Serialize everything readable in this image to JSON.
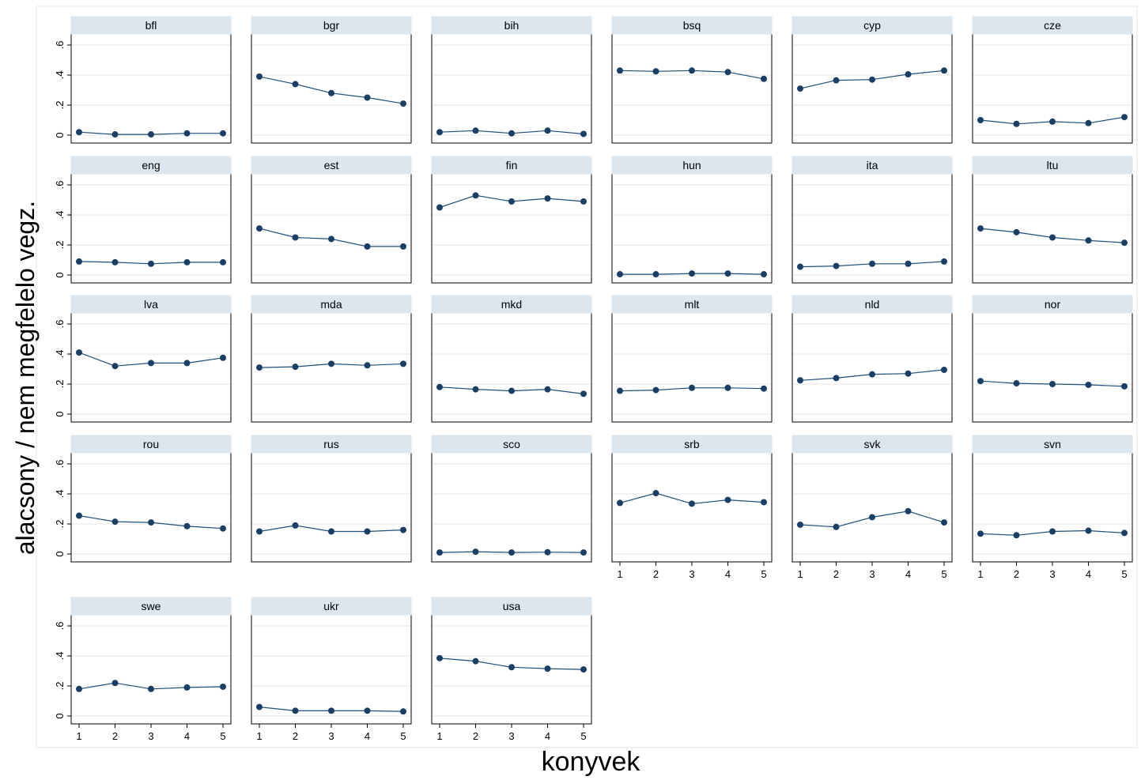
{
  "chart_data": {
    "type": "line",
    "xlabel": "konyvek",
    "ylabel": "alacsony / nem megfelelo vegz.",
    "x": [
      1,
      2,
      3,
      4,
      5
    ],
    "ylim": [
      0,
      0.6
    ],
    "yticks": [
      0,
      0.2,
      0.4,
      0.6
    ],
    "ytick_labels": [
      "0",
      ".2",
      ".4",
      ".6"
    ],
    "grid": true,
    "colors": {
      "line": "#1f4e79",
      "marker": "#1a3f66",
      "strip": "#dce6ee",
      "grid": "#e6e6e6",
      "frame": "#000000"
    },
    "panels": [
      {
        "name": "bfl",
        "values": [
          0.02,
          0.005,
          0.005,
          0.012,
          0.012
        ]
      },
      {
        "name": "bgr",
        "values": [
          0.39,
          0.34,
          0.28,
          0.25,
          0.21
        ]
      },
      {
        "name": "bih",
        "values": [
          0.02,
          0.03,
          0.012,
          0.03,
          0.008
        ]
      },
      {
        "name": "bsq",
        "values": [
          0.43,
          0.425,
          0.43,
          0.42,
          0.375
        ]
      },
      {
        "name": "cyp",
        "values": [
          0.31,
          0.365,
          0.37,
          0.405,
          0.43
        ]
      },
      {
        "name": "cze",
        "values": [
          0.1,
          0.075,
          0.09,
          0.08,
          0.12
        ]
      },
      {
        "name": "eng",
        "values": [
          0.09,
          0.085,
          0.075,
          0.085,
          0.085
        ]
      },
      {
        "name": "est",
        "values": [
          0.31,
          0.25,
          0.24,
          0.19,
          0.19
        ]
      },
      {
        "name": "fin",
        "values": [
          0.45,
          0.53,
          0.49,
          0.51,
          0.49
        ]
      },
      {
        "name": "hun",
        "values": [
          0.005,
          0.005,
          0.01,
          0.01,
          0.005
        ]
      },
      {
        "name": "ita",
        "values": [
          0.055,
          0.06,
          0.075,
          0.075,
          0.09
        ]
      },
      {
        "name": "ltu",
        "values": [
          0.31,
          0.285,
          0.25,
          0.23,
          0.215
        ]
      },
      {
        "name": "lva",
        "values": [
          0.41,
          0.32,
          0.34,
          0.34,
          0.375
        ]
      },
      {
        "name": "mda",
        "values": [
          0.31,
          0.315,
          0.335,
          0.325,
          0.335
        ]
      },
      {
        "name": "mkd",
        "values": [
          0.18,
          0.165,
          0.155,
          0.165,
          0.135
        ]
      },
      {
        "name": "mlt",
        "values": [
          0.155,
          0.16,
          0.175,
          0.175,
          0.17
        ]
      },
      {
        "name": "nld",
        "values": [
          0.225,
          0.24,
          0.265,
          0.27,
          0.295
        ]
      },
      {
        "name": "nor",
        "values": [
          0.22,
          0.205,
          0.2,
          0.195,
          0.185
        ]
      },
      {
        "name": "rou",
        "values": [
          0.255,
          0.215,
          0.21,
          0.185,
          0.17
        ]
      },
      {
        "name": "rus",
        "values": [
          0.15,
          0.19,
          0.15,
          0.15,
          0.16
        ]
      },
      {
        "name": "sco",
        "values": [
          0.01,
          0.015,
          0.01,
          0.012,
          0.01
        ]
      },
      {
        "name": "srb",
        "values": [
          0.34,
          0.405,
          0.335,
          0.36,
          0.345
        ]
      },
      {
        "name": "svk",
        "values": [
          0.195,
          0.18,
          0.245,
          0.285,
          0.21
        ]
      },
      {
        "name": "svn",
        "values": [
          0.135,
          0.125,
          0.15,
          0.155,
          0.14
        ]
      },
      {
        "name": "swe",
        "values": [
          0.18,
          0.22,
          0.18,
          0.19,
          0.195
        ]
      },
      {
        "name": "ukr",
        "values": [
          0.06,
          0.035,
          0.035,
          0.035,
          0.03
        ]
      },
      {
        "name": "usa",
        "values": [
          0.385,
          0.365,
          0.325,
          0.315,
          0.31
        ]
      }
    ]
  }
}
